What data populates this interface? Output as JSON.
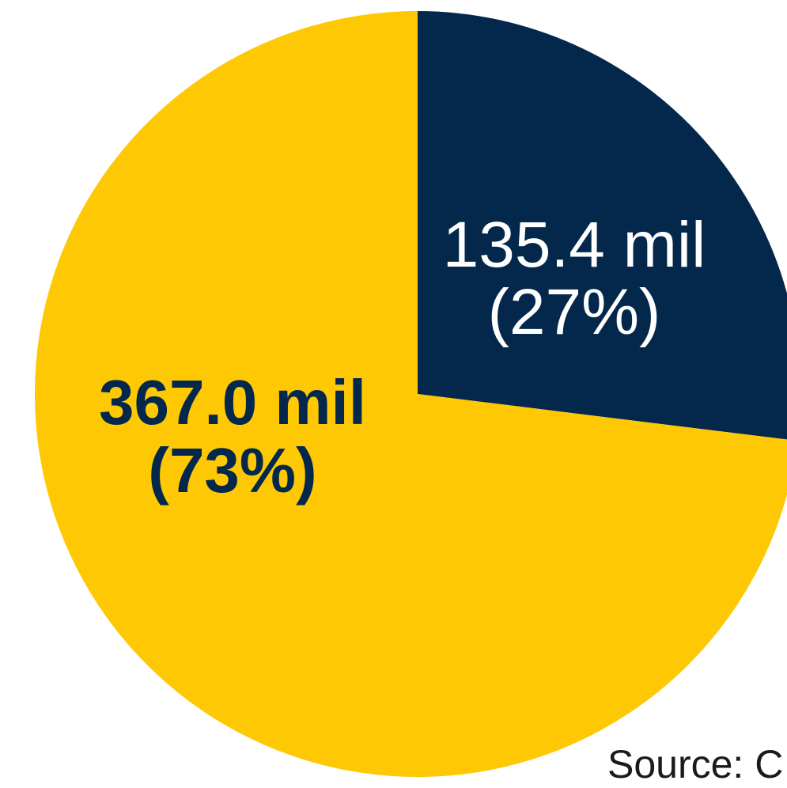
{
  "chart_data": {
    "type": "pie",
    "title": "",
    "slices": [
      {
        "value": 135.4,
        "percent": 27,
        "value_label": "135.4 mil",
        "percent_label": "(27%)",
        "color": "#03284c",
        "label_color": "#ffffff"
      },
      {
        "value": 367.0,
        "percent": 73,
        "value_label": "367.0 mil",
        "percent_label": "(73%)",
        "color": "#fec804",
        "label_color": "#03284c"
      }
    ],
    "start_angle": "12 o'clock",
    "direction": "clockwise",
    "legend": "none"
  },
  "source": {
    "text": "Source: C"
  }
}
